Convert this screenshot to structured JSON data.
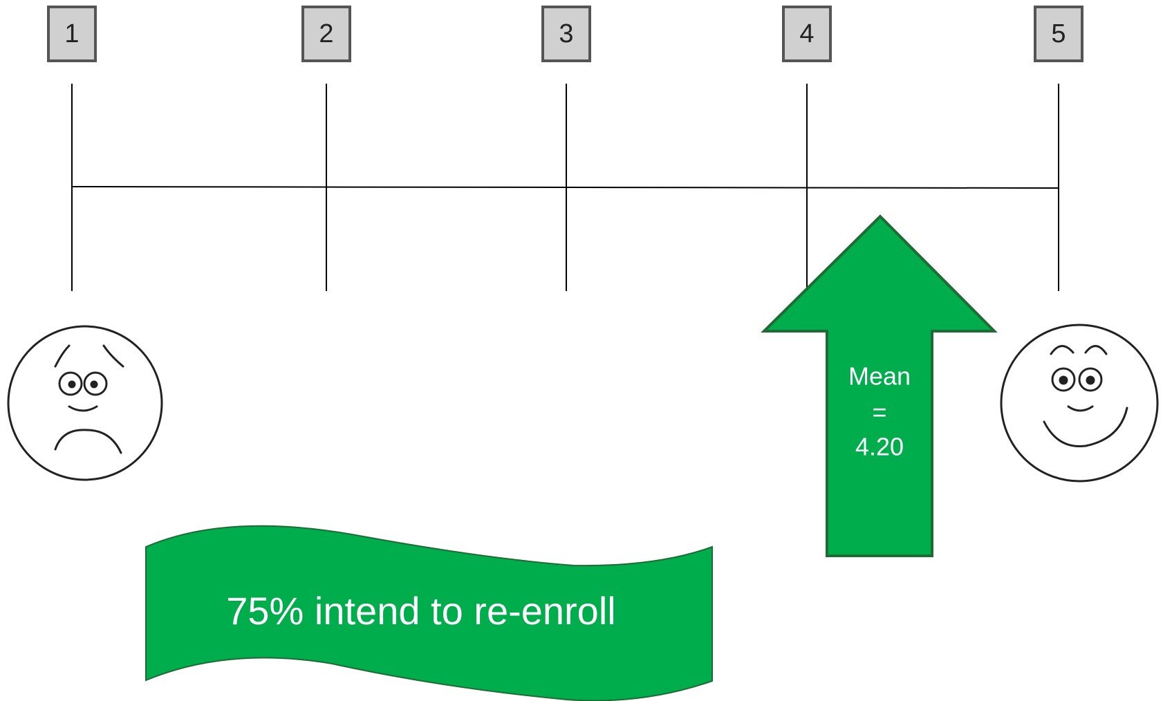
{
  "scale": {
    "points": [
      "1",
      "2",
      "3",
      "4",
      "5"
    ]
  },
  "mean_arrow": {
    "lines": [
      "Mean",
      "=",
      "4.20"
    ]
  },
  "banner": {
    "text": "75% intend to re-enroll"
  }
}
